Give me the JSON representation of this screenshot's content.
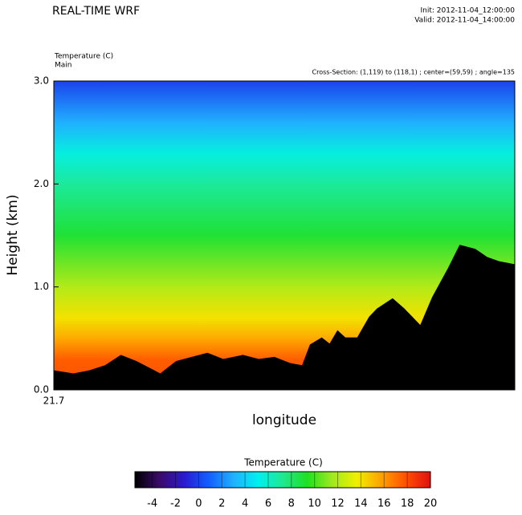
{
  "chart_data": {
    "type": "cross-section",
    "title": "REAL-TIME WRF",
    "init": "Init: 2012-11-04_12:00:00",
    "valid": "Valid: 2012-11-04_14:00:00",
    "field": "Temperature   (C)",
    "subtitle": "Main",
    "section": "Cross-Section: (1,119) to (118,1) ; center=(59,59) ; angle=135",
    "ylabel": "Height (km)",
    "xlabel": "longitude",
    "ylim": [
      0,
      3
    ],
    "yticks": [
      {
        "value": 0,
        "label": "0.0"
      },
      {
        "value": 1,
        "label": "1.0"
      },
      {
        "value": 2,
        "label": "2.0"
      },
      {
        "value": 3,
        "label": "3.0"
      }
    ],
    "xlim": [
      1,
      118
    ],
    "xticks": [
      {
        "value": 1,
        "label": "21.7"
      }
    ],
    "profile": {
      "heights": [
        0,
        0.3,
        0.5,
        0.7,
        1.0,
        1.5,
        2.0,
        2.3,
        2.6,
        3.0
      ],
      "values": [
        18,
        17.5,
        15.5,
        14,
        12,
        9,
        7,
        5.5,
        3,
        0
      ]
    },
    "terrain": {
      "color": "#000000",
      "x": [
        1,
        6,
        10,
        14,
        18,
        22,
        26,
        28,
        32,
        36,
        40,
        44,
        49,
        53,
        57,
        61,
        64,
        66,
        69,
        71,
        73,
        75,
        78,
        81,
        83,
        87,
        90,
        93,
        94,
        97,
        101,
        104,
        108,
        111,
        114,
        118
      ],
      "values": [
        0.19,
        0.16,
        0.19,
        0.24,
        0.34,
        0.28,
        0.2,
        0.16,
        0.28,
        0.32,
        0.36,
        0.3,
        0.34,
        0.3,
        0.32,
        0.26,
        0.24,
        0.44,
        0.51,
        0.45,
        0.58,
        0.51,
        0.51,
        0.71,
        0.79,
        0.89,
        0.79,
        0.67,
        0.63,
        0.9,
        1.18,
        1.41,
        1.37,
        1.29,
        1.25,
        1.22
      ]
    },
    "colorbar": {
      "title": "Temperature  (C)",
      "clim": [
        -5.5,
        20
      ],
      "ticks": [
        -4,
        -2,
        0,
        2,
        4,
        6,
        8,
        10,
        12,
        14,
        16,
        18,
        20
      ],
      "colors": [
        "#000000",
        "#3a0a6a",
        "#2a1ad0",
        "#1060ff",
        "#20b0ff",
        "#00f0f0",
        "#20e890",
        "#20e020",
        "#a0e820",
        "#f0f000",
        "#ffa000",
        "#ff5000",
        "#e01010"
      ]
    }
  }
}
